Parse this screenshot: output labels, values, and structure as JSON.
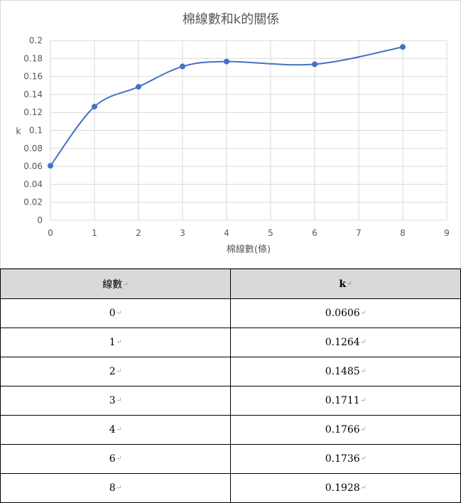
{
  "chart_data": {
    "type": "scatter",
    "title": "棉線數和k的關係",
    "xlabel": "棉線數(條)",
    "ylabel": "k",
    "xlim": [
      0,
      9
    ],
    "ylim": [
      0,
      0.2
    ],
    "x_ticks": [
      "0",
      "1",
      "2",
      "3",
      "4",
      "5",
      "6",
      "7",
      "8",
      "9"
    ],
    "y_ticks": [
      "0",
      "0.02",
      "0.04",
      "0.06",
      "0.08",
      "0.1",
      "0.12",
      "0.14",
      "0.16",
      "0.18",
      "0.2"
    ],
    "grid": true,
    "smooth_line": true,
    "series": [
      {
        "x": [
          0,
          1,
          2,
          3,
          4,
          6,
          8
        ],
        "y": [
          0.0606,
          0.1264,
          0.1485,
          0.1711,
          0.1766,
          0.1736,
          0.1928
        ]
      }
    ],
    "colors": {
      "series": "#4472c4",
      "grid": "#d9d9d9"
    }
  },
  "table": {
    "headers": [
      "線數",
      "k"
    ],
    "mark": "↵",
    "rows": [
      [
        "0",
        "0.0606"
      ],
      [
        "1",
        "0.1264"
      ],
      [
        "2",
        "0.1485"
      ],
      [
        "3",
        "0.1711"
      ],
      [
        "4",
        "0.1766"
      ],
      [
        "6",
        "0.1736"
      ],
      [
        "8",
        "0.1928"
      ]
    ]
  }
}
